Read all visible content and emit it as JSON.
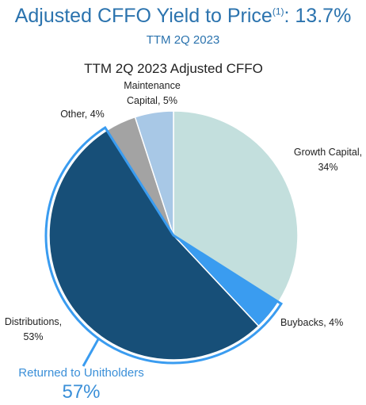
{
  "headline": {
    "prefix": "Adjusted CFFO Yield to Price",
    "footnote": "(1)",
    "suffix": ":  13.7%"
  },
  "subhead": "TTM 2Q 2023",
  "footer": {
    "label": "Returned to Unitholders",
    "value": "57%"
  },
  "chart_data": {
    "type": "pie",
    "title": "TTM 2Q 2023 Adjusted CFFO",
    "unit": "%",
    "slices": [
      {
        "label": "Growth Capital, 34%",
        "value": 34,
        "color": "#c3dfdd"
      },
      {
        "label": "Buybacks, 4%",
        "value": 4,
        "color": "#3a9cf0"
      },
      {
        "label": "Distributions, 53%",
        "value": 53,
        "color": "#174f78"
      },
      {
        "label": "Other, 4%",
        "value": 4,
        "color": "#a3a3a3"
      },
      {
        "label": "Maintenance Capital, 5%",
        "value": 5,
        "color": "#a8c8e6"
      }
    ],
    "highlight": {
      "slices": [
        "Buybacks, 4%",
        "Distributions, 53%"
      ],
      "outline_color": "#3a9cf0"
    }
  }
}
